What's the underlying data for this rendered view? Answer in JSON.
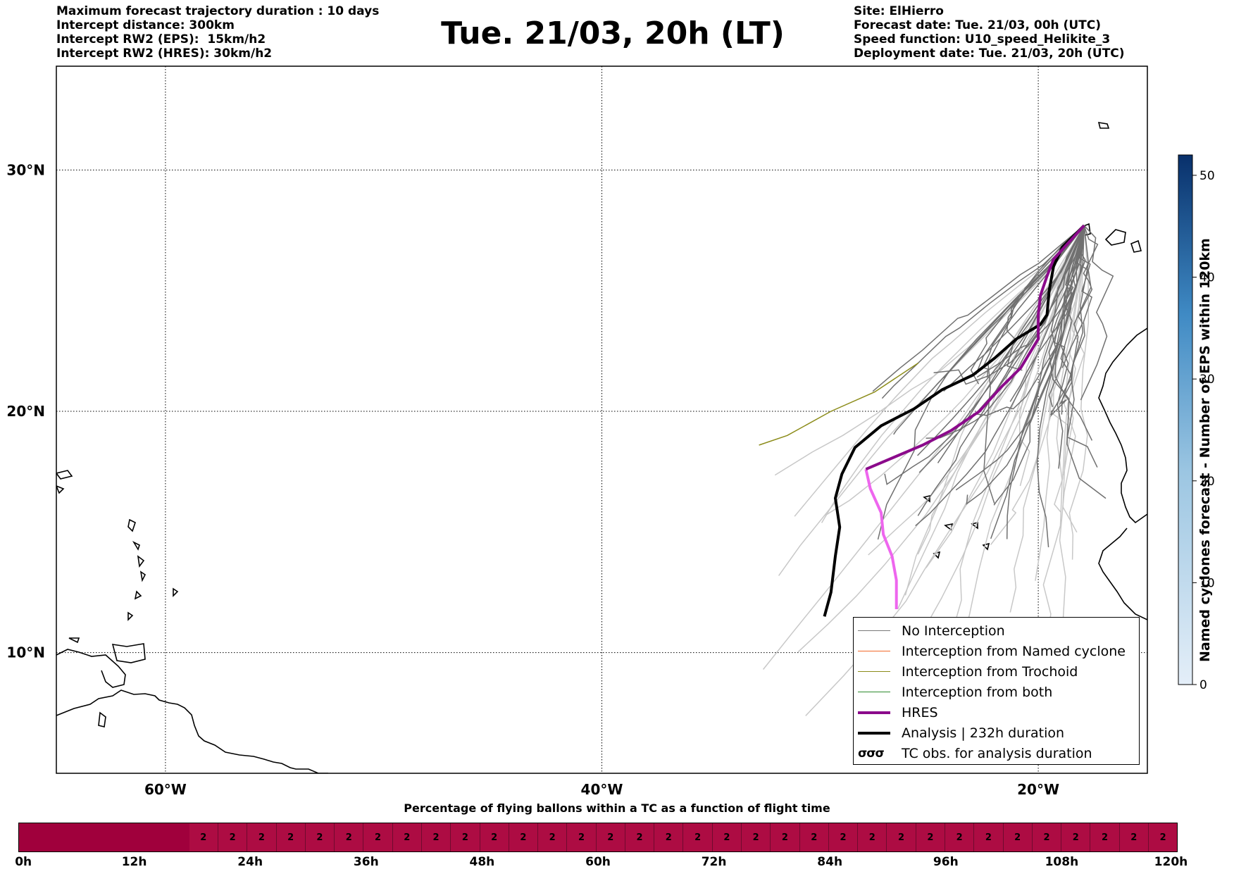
{
  "header_left": [
    "Maximum forecast trajectory duration : 10 days",
    "Intercept distance: 300km",
    "Intercept RW2 (EPS):  15km/h2",
    "Intercept RW2 (HRES): 30km/h2"
  ],
  "header_right": [
    "Site: ElHierro",
    "Forecast date: Tue. 21/03, 00h (UTC)",
    "Speed function: U10_speed_Helikite_3",
    "Deployment date: Tue. 21/03, 20h (UTC)"
  ],
  "title": "Tue. 21/03, 20h (LT)",
  "map": {
    "lon_range": [
      -65,
      -15
    ],
    "lat_range": [
      5,
      34.3
    ],
    "lon_ticks": [
      {
        "value": -60,
        "label": "60°W"
      },
      {
        "value": -40,
        "label": "40°W"
      },
      {
        "value": -20,
        "label": "20°W"
      }
    ],
    "lat_ticks": [
      {
        "value": 10,
        "label": "10°N"
      },
      {
        "value": 20,
        "label": "20°N"
      },
      {
        "value": 30,
        "label": "30°N"
      }
    ],
    "grid": "dotted"
  },
  "colorbar": {
    "label": "Named cyclones forecast - Number of EPS within 120km",
    "min": 0,
    "max": 52,
    "ticks": [
      {
        "value": 0,
        "label": "0"
      },
      {
        "value": 10,
        "label": "10"
      },
      {
        "value": 20,
        "label": "20"
      },
      {
        "value": 30,
        "label": "30"
      },
      {
        "value": 40,
        "label": "40"
      },
      {
        "value": 50,
        "label": "50"
      }
    ],
    "color_low": "#e4eef8",
    "color_high": "#08306b"
  },
  "legend": [
    {
      "label": "No Interception",
      "color": "#777777",
      "width": 1.5
    },
    {
      "label": "Interception from Named cyclone",
      "color": "#f26a2b",
      "width": 1.5
    },
    {
      "label": "Interception from Trochoid",
      "color": "#8c8c1a",
      "width": 1.5
    },
    {
      "label": "Interception from both",
      "color": "#2e8b2e",
      "width": 1.5
    },
    {
      "label": "HRES",
      "color": "#8b0a8b",
      "width": 4
    },
    {
      "label": "Analysis | 232h duration",
      "color": "#000000",
      "width": 4
    },
    {
      "label": "TC obs. for analysis duration",
      "symbol": "σσσ"
    }
  ],
  "trajectories": {
    "origin": [
      -17.9,
      27.7
    ],
    "hres": [
      [
        -17.9,
        27.7
      ],
      [
        -18.6,
        27.0
      ],
      [
        -19.3,
        26.3
      ],
      [
        -19.6,
        25.6
      ],
      [
        -19.9,
        24.8
      ],
      [
        -20.0,
        24.0
      ],
      [
        -20.0,
        23.0
      ],
      [
        -20.8,
        21.8
      ],
      [
        -21.7,
        21.0
      ],
      [
        -22.7,
        20.0
      ],
      [
        -24.0,
        19.2
      ],
      [
        -25.3,
        18.6
      ],
      [
        -26.6,
        18.1
      ],
      [
        -27.9,
        17.6
      ]
    ],
    "hres_pink": [
      [
        -27.9,
        17.6
      ],
      [
        -27.7,
        16.8
      ],
      [
        -27.2,
        15.8
      ],
      [
        -27.1,
        14.9
      ],
      [
        -26.7,
        14.0
      ],
      [
        -26.5,
        13.0
      ],
      [
        -26.5,
        11.8
      ]
    ],
    "analysis": [
      [
        -17.9,
        27.7
      ],
      [
        -18.9,
        26.8
      ],
      [
        -19.3,
        26.0
      ],
      [
        -19.5,
        25.0
      ],
      [
        -19.6,
        24.0
      ],
      [
        -19.9,
        23.6
      ],
      [
        -21.0,
        23.0
      ],
      [
        -22.0,
        22.2
      ],
      [
        -23.0,
        21.5
      ],
      [
        -24.4,
        20.9
      ],
      [
        -25.7,
        20.1
      ],
      [
        -27.2,
        19.4
      ],
      [
        -28.4,
        18.5
      ],
      [
        -29.0,
        17.4
      ],
      [
        -29.3,
        16.4
      ],
      [
        -29.1,
        15.2
      ],
      [
        -29.3,
        14.0
      ],
      [
        -29.5,
        12.5
      ],
      [
        -29.8,
        11.5
      ]
    ],
    "trochoid": [
      [
        -25.5,
        22.0
      ],
      [
        -27.5,
        20.8
      ],
      [
        -29.5,
        20.0
      ],
      [
        -31.5,
        19.0
      ],
      [
        -32.8,
        18.6
      ]
    ]
  },
  "bottom_title": "Percentage of flying ballons within a TC as a function of flight time",
  "timebar": {
    "cells": [
      "",
      "",
      "",
      "",
      "",
      "",
      "2",
      "2",
      "2",
      "2",
      "2",
      "2",
      "2",
      "2",
      "2",
      "2",
      "2",
      "2",
      "2",
      "2",
      "2",
      "2",
      "2",
      "2",
      "2",
      "2",
      "2",
      "2",
      "2",
      "2",
      "2",
      "2",
      "2",
      "2",
      "2",
      "2",
      "2",
      "2",
      "2",
      "2"
    ],
    "dark_color": "#a0003c",
    "light_color": "#ad0c43",
    "ticks": [
      {
        "value": 0,
        "label": "0h"
      },
      {
        "value": 12,
        "label": "12h"
      },
      {
        "value": 24,
        "label": "24h"
      },
      {
        "value": 36,
        "label": "36h"
      },
      {
        "value": 48,
        "label": "48h"
      },
      {
        "value": 60,
        "label": "60h"
      },
      {
        "value": 72,
        "label": "72h"
      },
      {
        "value": 84,
        "label": "84h"
      },
      {
        "value": 96,
        "label": "96h"
      },
      {
        "value": 108,
        "label": "108h"
      },
      {
        "value": 120,
        "label": "120h"
      }
    ],
    "max": 120
  }
}
